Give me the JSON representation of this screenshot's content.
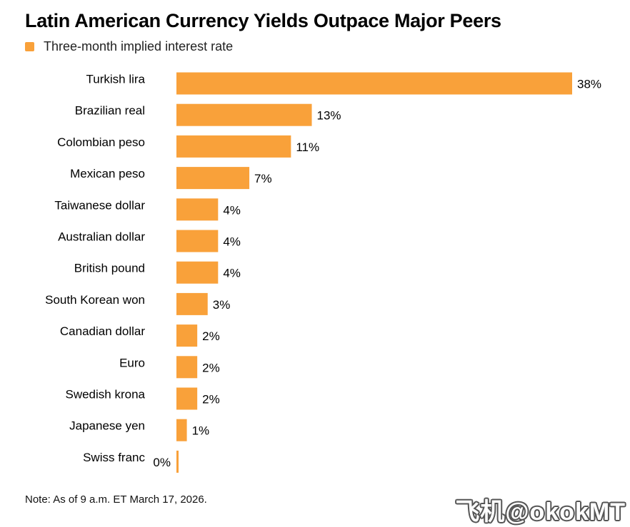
{
  "title": "Latin American Currency Yields Outpace Major Peers",
  "legend": {
    "label": "Three-month implied interest rate",
    "color": "#f9a13a"
  },
  "note": "Note: As of 9 a.m. ET March 17, 2026.",
  "watermark": "飞机@okokMT",
  "chart_data": {
    "type": "bar",
    "orientation": "horizontal",
    "categories": [
      "Turkish lira",
      "Brazilian real",
      "Colombian peso",
      "Mexican peso",
      "Taiwanese dollar",
      "Australian dollar",
      "British pound",
      "South Korean won",
      "Canadian dollar",
      "Euro",
      "Swedish krona",
      "Japanese yen",
      "Swiss franc"
    ],
    "series": [
      {
        "name": "Three-month implied interest rate",
        "values": [
          38,
          13,
          11,
          7,
          4,
          4,
          4,
          3,
          2,
          2,
          2,
          1,
          0
        ],
        "labels": [
          "38%",
          "13%",
          "11%",
          "7%",
          "4%",
          "4%",
          "4%",
          "3%",
          "2%",
          "2%",
          "2%",
          "1%",
          "0%"
        ]
      }
    ],
    "xlim": [
      0,
      38
    ],
    "grid": false,
    "legend_position": "top-left",
    "bar_color": "#f9a13a"
  }
}
